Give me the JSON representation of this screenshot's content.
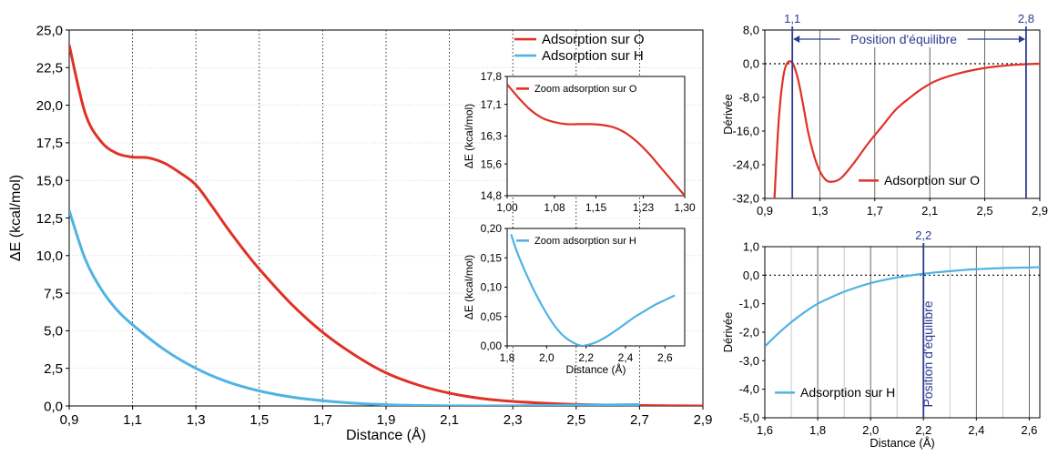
{
  "colors": {
    "adsorption_O": "#e03127",
    "adsorption_H": "#4fb3e3",
    "marker": "#2b3a8f",
    "axis": "#000000",
    "grid": "#999999"
  },
  "chart_data": [
    {
      "id": "main",
      "type": "line",
      "xlabel": "Distance (Å)",
      "ylabel": "ΔE (kcal/mol)",
      "xlim": [
        0.9,
        2.9
      ],
      "ylim": [
        0,
        25
      ],
      "xticks": [
        "0,9",
        "1,1",
        "1,3",
        "1,5",
        "1,7",
        "1,9",
        "2,1",
        "2,3",
        "2,5",
        "2,7",
        "2,9"
      ],
      "yticks": [
        "0,0",
        "2,5",
        "5,0",
        "7,5",
        "10,0",
        "12,5",
        "15,0",
        "17,5",
        "20,0",
        "22,5",
        "25,0"
      ],
      "legend": "top-right",
      "series": [
        {
          "name": "Adsorption sur O",
          "color": "#e03127",
          "x": [
            0.9,
            0.95,
            1.0,
            1.05,
            1.1,
            1.15,
            1.2,
            1.25,
            1.3,
            1.35,
            1.4,
            1.45,
            1.5,
            1.6,
            1.7,
            1.8,
            1.9,
            2.0,
            2.1,
            2.2,
            2.3,
            2.4,
            2.5,
            2.6,
            2.7,
            2.8,
            2.9
          ],
          "y": [
            24.0,
            19.5,
            17.6,
            16.8,
            16.55,
            16.5,
            16.15,
            15.5,
            14.7,
            13.3,
            11.8,
            10.4,
            9.1,
            6.8,
            4.9,
            3.4,
            2.2,
            1.4,
            0.85,
            0.5,
            0.3,
            0.18,
            0.1,
            0.06,
            0.03,
            0.01,
            0.0
          ]
        },
        {
          "name": "Adsorption sur H",
          "color": "#4fb3e3",
          "x": [
            0.9,
            0.95,
            1.0,
            1.05,
            1.1,
            1.2,
            1.3,
            1.4,
            1.5,
            1.6,
            1.7,
            1.8,
            1.9,
            2.0,
            2.1,
            2.2,
            2.3,
            2.4,
            2.5,
            2.6,
            2.7
          ],
          "y": [
            13.0,
            9.8,
            7.8,
            6.4,
            5.4,
            3.75,
            2.5,
            1.6,
            1.0,
            0.6,
            0.35,
            0.18,
            0.08,
            0.03,
            0.01,
            0.0,
            0.01,
            0.03,
            0.05,
            0.07,
            0.09
          ]
        }
      ]
    },
    {
      "id": "zoom_O",
      "type": "line",
      "ylabel": "ΔE (kcal/mol)",
      "xlim": [
        1.0,
        1.3
      ],
      "ylim": [
        14.8,
        17.8
      ],
      "xticks": [
        "1,00",
        "1,08",
        "1,15",
        "1,23",
        "1,30"
      ],
      "yticks": [
        "14,8",
        "15,6",
        "16,3",
        "17,1",
        "17,8"
      ],
      "legend": "top-right",
      "series": [
        {
          "name": "Zoom adsorption sur O",
          "color": "#e03127",
          "x": [
            1.0,
            1.02,
            1.04,
            1.06,
            1.08,
            1.1,
            1.12,
            1.14,
            1.16,
            1.18,
            1.2,
            1.22,
            1.24,
            1.26,
            1.28,
            1.3
          ],
          "y": [
            17.6,
            17.25,
            16.95,
            16.75,
            16.65,
            16.6,
            16.6,
            16.6,
            16.58,
            16.52,
            16.38,
            16.15,
            15.85,
            15.5,
            15.15,
            14.8
          ]
        }
      ]
    },
    {
      "id": "zoom_H",
      "type": "line",
      "xlabel": "Distance (Å)",
      "ylabel": "ΔE (kcal/mol)",
      "xlim": [
        1.8,
        2.7
      ],
      "ylim": [
        0,
        0.2
      ],
      "xticks": [
        "1,8",
        "2,0",
        "2,2",
        "2,4",
        "2,6"
      ],
      "yticks": [
        "0,00",
        "0,05",
        "0,10",
        "0,15",
        "0,20"
      ],
      "legend": "top-right",
      "series": [
        {
          "name": "Zoom adsorption sur H",
          "color": "#4fb3e3",
          "x": [
            1.82,
            1.85,
            1.9,
            1.95,
            2.0,
            2.05,
            2.1,
            2.15,
            2.18,
            2.2,
            2.25,
            2.3,
            2.35,
            2.4,
            2.45,
            2.5,
            2.55,
            2.6,
            2.65
          ],
          "y": [
            0.19,
            0.16,
            0.12,
            0.085,
            0.055,
            0.03,
            0.013,
            0.003,
            0.0,
            0.001,
            0.006,
            0.015,
            0.026,
            0.038,
            0.05,
            0.06,
            0.07,
            0.078,
            0.086
          ]
        }
      ]
    },
    {
      "id": "deriv_O",
      "type": "line",
      "ylabel": "Dérivée",
      "xlim": [
        0.9,
        2.9
      ],
      "ylim": [
        -32,
        8
      ],
      "xticks": [
        "0,9",
        "1,3",
        "1,7",
        "2,1",
        "2,5",
        "2,9"
      ],
      "yticks": [
        "-32,0",
        "-24,0",
        "-16,0",
        "-8,0",
        "0,0",
        "8,0"
      ],
      "legend": "bottom-right",
      "markers": [
        {
          "x": 1.1,
          "label": "1,1"
        },
        {
          "x": 2.8,
          "label": "2,8"
        }
      ],
      "annotation": "Position d'équilibre",
      "series": [
        {
          "name": "Adsorption sur O",
          "color": "#e03127",
          "x": [
            0.97,
            1.0,
            1.03,
            1.06,
            1.1,
            1.14,
            1.18,
            1.22,
            1.28,
            1.34,
            1.4,
            1.46,
            1.55,
            1.65,
            1.75,
            1.85,
            1.95,
            2.05,
            2.15,
            2.3,
            2.45,
            2.6,
            2.75,
            2.9
          ],
          "y": [
            -32,
            -14,
            -4,
            0,
            0.2,
            -3.5,
            -10,
            -17,
            -24,
            -27.5,
            -28,
            -27,
            -23.5,
            -19,
            -15,
            -11,
            -8.2,
            -5.8,
            -4.0,
            -2.4,
            -1.3,
            -0.6,
            -0.2,
            0.0
          ]
        }
      ]
    },
    {
      "id": "deriv_H",
      "type": "line",
      "xlabel": "Distance (Å)",
      "ylabel": "Dérivée",
      "xlim": [
        1.6,
        2.64
      ],
      "ylim": [
        -5,
        1
      ],
      "xticks": [
        "1,6",
        "1,8",
        "2,0",
        "2,2",
        "2,4",
        "2,6"
      ],
      "yticks": [
        "-5,0",
        "-4,0",
        "-3,0",
        "-2,0",
        "-1,0",
        "0,0",
        "1,0"
      ],
      "legend": "bottom-left",
      "markers": [
        {
          "x": 2.2,
          "label": "2,2"
        }
      ],
      "annotation": "Position d'équilibre",
      "series": [
        {
          "name": "Adsorption sur H",
          "color": "#4fb3e3",
          "x": [
            1.6,
            1.65,
            1.7,
            1.75,
            1.8,
            1.85,
            1.9,
            1.95,
            2.0,
            2.05,
            2.1,
            2.15,
            2.2,
            2.25,
            2.3,
            2.35,
            2.4,
            2.45,
            2.5,
            2.55,
            2.6,
            2.64
          ],
          "y": [
            -2.5,
            -2.05,
            -1.65,
            -1.3,
            -1.0,
            -0.78,
            -0.58,
            -0.42,
            -0.28,
            -0.17,
            -0.08,
            -0.01,
            0.05,
            0.1,
            0.14,
            0.18,
            0.21,
            0.23,
            0.25,
            0.26,
            0.27,
            0.28
          ]
        }
      ]
    }
  ]
}
